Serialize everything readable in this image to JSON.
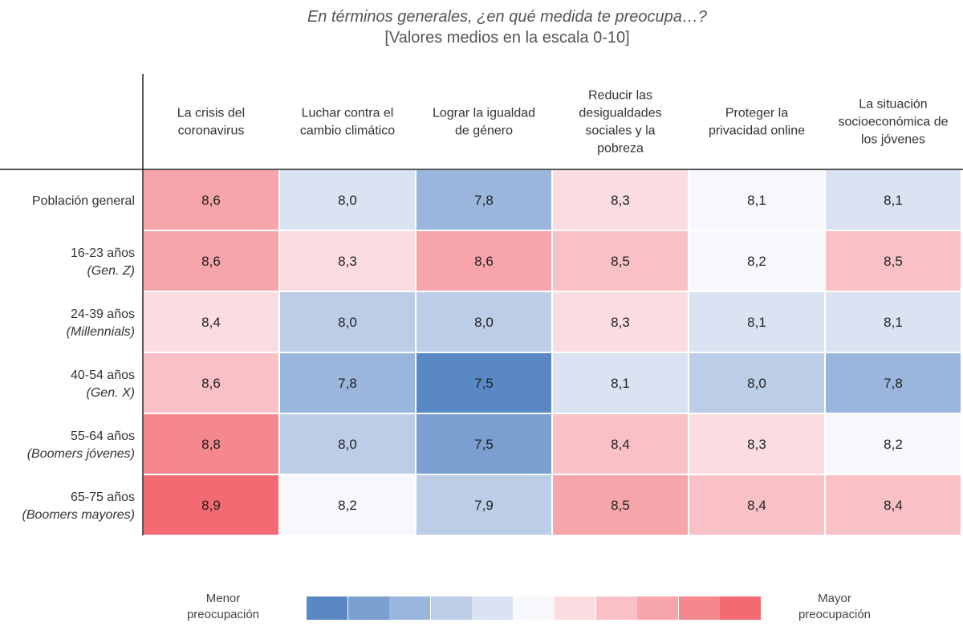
{
  "title": {
    "line1": "En términos generales, ¿en qué medida te preocupa…?",
    "line2": "[Valores medios en la escala 0-10]"
  },
  "legend": {
    "low_label": [
      "Menor",
      "preocupación"
    ],
    "high_label": [
      "Mayor",
      "preocupación"
    ],
    "colors": [
      "#5a88c4",
      "#7a9fd0",
      "#9bb6dd",
      "#bccde8",
      "#dbe3f2",
      "#f7f8fc",
      "#fbdde1",
      "#f9c1c6",
      "#f7a4ab",
      "#f5878f",
      "#f36a73"
    ]
  },
  "chart_data": {
    "type": "heatmap",
    "title": "En términos generales, ¿en qué medida te preocupa…?",
    "subtitle": "[Valores medios en la escala 0-10]",
    "columns": [
      [
        "La crisis del",
        "coronavirus"
      ],
      [
        "Luchar contra el",
        "cambio climático"
      ],
      [
        "Lograr la igualdad",
        "de género"
      ],
      [
        "Reducir las",
        "desigualdades",
        "sociales y la",
        "pobreza"
      ],
      [
        "Proteger la",
        "privacidad online"
      ],
      [
        "La situación",
        "socioeconómica de",
        "los jóvenes"
      ]
    ],
    "rows": [
      {
        "label": "Población general",
        "sublabel": "",
        "values": [
          "8,6",
          "8,0",
          "7,8",
          "8,3",
          "8,1",
          "8,1"
        ]
      },
      {
        "label": "16-23 años",
        "sublabel": "(Gen. Z)",
        "values": [
          "8,6",
          "8,3",
          "8,6",
          "8,5",
          "8,2",
          "8,5"
        ]
      },
      {
        "label": "24-39 años",
        "sublabel": "(Millennials)",
        "values": [
          "8,4",
          "8,0",
          "8,0",
          "8,3",
          "8,1",
          "8,1"
        ]
      },
      {
        "label": "40-54 años",
        "sublabel": "(Gen. X)",
        "values": [
          "8,6",
          "7,8",
          "7,5",
          "8,1",
          "8,0",
          "7,8"
        ]
      },
      {
        "label": "55-64 años",
        "sublabel": "(Boomers jóvenes)",
        "values": [
          "8,8",
          "8,0",
          "7,5",
          "8,4",
          "8,3",
          "8,2"
        ]
      },
      {
        "label": "65-75 años",
        "sublabel": "(Boomers mayores)",
        "values": [
          "8,9",
          "8,2",
          "7,9",
          "8,5",
          "8,4",
          "8,4"
        ]
      }
    ],
    "color_shades": [
      [
        8,
        4,
        2,
        6,
        5,
        4
      ],
      [
        8,
        6,
        8,
        7,
        5,
        7
      ],
      [
        6,
        3,
        3,
        6,
        4,
        4
      ],
      [
        7,
        2,
        0,
        4,
        3,
        2
      ],
      [
        9,
        3,
        1,
        7,
        6,
        5
      ],
      [
        10,
        5,
        3,
        8,
        7,
        7
      ]
    ]
  }
}
